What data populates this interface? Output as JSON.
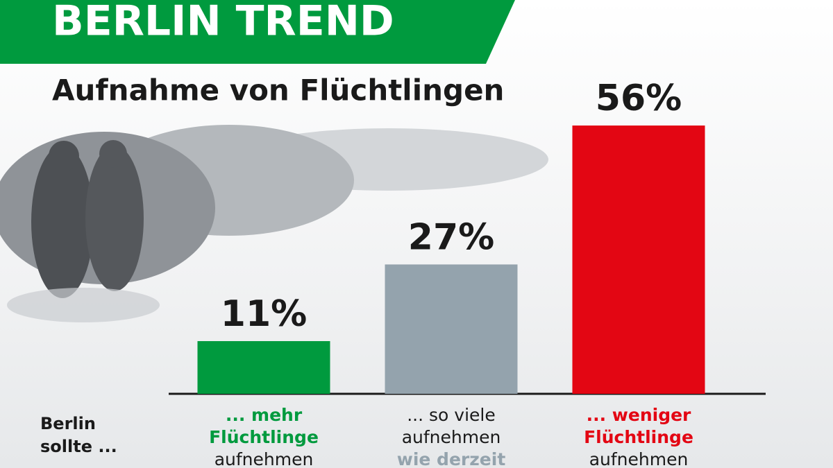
{
  "chart_data": {
    "type": "bar",
    "header": "BERLIN TREND",
    "title": "Aufnahme von Flüchtlingen",
    "row_label": [
      "Berlin",
      "sollte ..."
    ],
    "categories": [
      [
        "... mehr",
        "Flüchtlinge",
        "aufnehmen"
      ],
      [
        "... so viele",
        "aufnehmen",
        "wie derzeit"
      ],
      [
        "... weniger",
        "Flüchtlinge",
        "aufnehmen"
      ]
    ],
    "values": [
      11,
      27,
      56
    ],
    "value_labels": [
      "11%",
      "27%",
      "56%"
    ],
    "colors": [
      "#009a3e",
      "#94a3ad",
      "#e30613"
    ],
    "ylim": [
      0,
      60
    ]
  }
}
